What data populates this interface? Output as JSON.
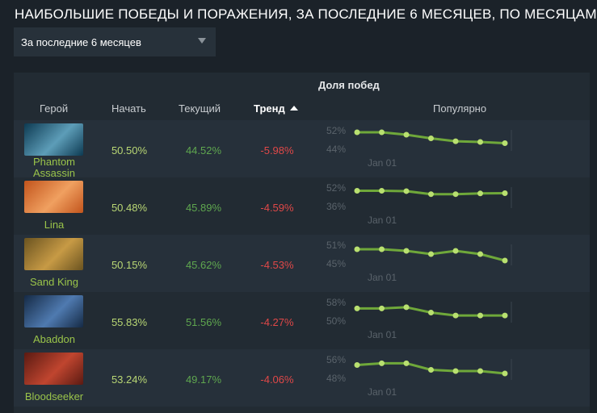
{
  "page_title": "НАИБОЛЬШИЕ ПОБЕДЫ И ПОРАЖЕНИЯ, ЗА ПОСЛЕДНИЕ 6 МЕСЯЦЕВ, ПО МЕСЯЦАМ",
  "period_select": {
    "value": "За последние 6 месяцев"
  },
  "table": {
    "group_header": "Доля побед",
    "columns": {
      "hero": "Герой",
      "start": "Начать",
      "current": "Текущий",
      "trend": "Тренд",
      "popular": "Популярно"
    },
    "rows": [
      {
        "hero": "Phantom Assassin",
        "hero_line1": "Phantom",
        "hero_line2": "Assassin",
        "start": "50.50%",
        "current": "44.52%",
        "trend": "-5.98%",
        "spark_max": "52%",
        "spark_min": "44%",
        "spark_date": "Jan 01",
        "spark_values": [
          51.0,
          51.0,
          50.0,
          48.5,
          47.3,
          47.0,
          46.5
        ],
        "portrait_colors": [
          "#0d3a52",
          "#5d9db8"
        ]
      },
      {
        "hero": "Lina",
        "hero_line1": "Lina",
        "hero_line2": "",
        "start": "50.48%",
        "current": "45.89%",
        "trend": "-4.59%",
        "spark_max": "52%",
        "spark_min": "36%",
        "spark_date": "Jan 01",
        "spark_values": [
          49.0,
          49.0,
          48.7,
          46.2,
          46.2,
          46.8,
          47.0
        ],
        "portrait_colors": [
          "#c2541c",
          "#f0a060"
        ]
      },
      {
        "hero": "Sand King",
        "hero_line1": "Sand King",
        "hero_line2": "",
        "start": "50.15%",
        "current": "45.62%",
        "trend": "-4.53%",
        "spark_max": "51%",
        "spark_min": "45%",
        "spark_date": "Jan 01",
        "spark_values": [
          49.5,
          49.5,
          49.0,
          48.0,
          49.0,
          48.0,
          46.0
        ],
        "portrait_colors": [
          "#6a5320",
          "#c79a45"
        ]
      },
      {
        "hero": "Abaddon",
        "hero_line1": "Abaddon",
        "hero_line2": "",
        "start": "55.83%",
        "current": "51.56%",
        "trend": "-4.27%",
        "spark_max": "58%",
        "spark_min": "50%",
        "spark_date": "Jan 01",
        "spark_values": [
          55.2,
          55.2,
          55.7,
          53.5,
          52.3,
          52.3,
          52.3
        ],
        "portrait_colors": [
          "#152a45",
          "#4f7ab0"
        ]
      },
      {
        "hero": "Bloodseeker",
        "hero_line1": "Bloodseeker",
        "hero_line2": "",
        "start": "53.24%",
        "current": "49.17%",
        "trend": "-4.06%",
        "spark_max": "56%",
        "spark_min": "48%",
        "spark_date": "Jan 01",
        "spark_values": [
          53.5,
          54.2,
          54.2,
          51.5,
          51.0,
          51.0,
          50.0
        ],
        "portrait_colors": [
          "#5a1a12",
          "#c0452f"
        ]
      }
    ]
  },
  "colors": {
    "background": "#1b2229",
    "start_green": "#b9d774",
    "current_green": "#5fa74f",
    "trend_red": "#e04848",
    "spark_line": "#6fa83a",
    "spark_point": "#b9e070"
  }
}
